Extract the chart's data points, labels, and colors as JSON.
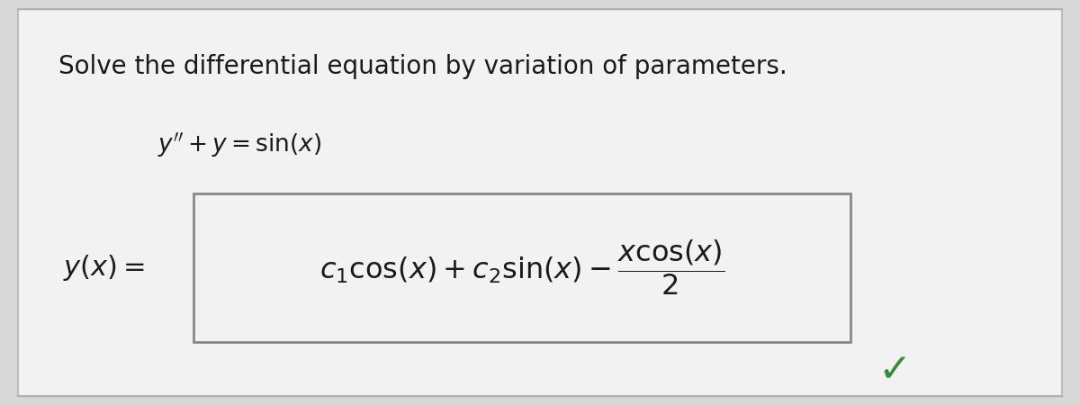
{
  "background_color": "#d8d8d8",
  "card_facecolor": "#f2f2f2",
  "title_text": "Solve the differential equation by variation of parameters.",
  "equation_text": "y″ + y = sin(x)",
  "title_fontsize": 20,
  "eq_fontsize": 19,
  "sol_label_fontsize": 22,
  "sol_fontsize": 23,
  "box_edge_color": "#888888",
  "text_color": "#1a1a1a",
  "checkmark_color": "#3a8a3a",
  "checkmark_fontsize": 32,
  "line_color": "#aaaaaa",
  "card_edge_color": "#bbbbbb"
}
